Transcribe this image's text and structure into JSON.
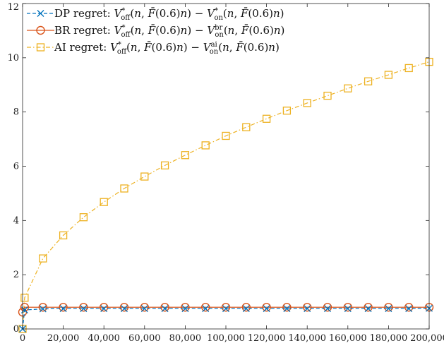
{
  "chart_data": {
    "type": "line",
    "title": "",
    "xlabel": "",
    "ylabel": "",
    "xlim": [
      0,
      200000
    ],
    "ylim": [
      0,
      12
    ],
    "x_ticks": [
      0,
      20000,
      40000,
      60000,
      80000,
      100000,
      120000,
      140000,
      160000,
      180000,
      200000
    ],
    "x_tick_labels": [
      "0",
      "20,000",
      "40,000",
      "60,000",
      "80,000",
      "100,000",
      "120,000",
      "140,000",
      "160,000",
      "180,000",
      "200,000"
    ],
    "y_ticks": [
      0,
      2,
      4,
      6,
      8,
      10,
      12
    ],
    "y_tick_labels": [
      "0",
      "2",
      "4",
      "6",
      "8",
      "10",
      "12"
    ],
    "grid": false,
    "legend_position": "top-left",
    "x": [
      0,
      1000,
      10000,
      20000,
      30000,
      40000,
      50000,
      60000,
      70000,
      80000,
      90000,
      100000,
      110000,
      120000,
      130000,
      140000,
      150000,
      160000,
      170000,
      180000,
      190000,
      200000
    ],
    "series": [
      {
        "name": "DP regret: V*off(n, F̄(0.6)n) − V*on(n, F̄(0.6)n)",
        "legend_label": "DP regret:",
        "color": "#0072BD",
        "line_style": "dashed",
        "marker": "x",
        "values": [
          0.0,
          0.7,
          0.74,
          0.75,
          0.75,
          0.75,
          0.75,
          0.75,
          0.75,
          0.75,
          0.75,
          0.75,
          0.75,
          0.75,
          0.75,
          0.75,
          0.75,
          0.75,
          0.75,
          0.75,
          0.75,
          0.76
        ]
      },
      {
        "name": "BR regret: V*off(n, F̄(0.6)n) − V^br_on(n, F̄(0.6)n)",
        "legend_label": "BR regret:",
        "color": "#D95319",
        "line_style": "solid",
        "marker": "circle",
        "values": [
          0.62,
          0.8,
          0.8,
          0.8,
          0.8,
          0.8,
          0.8,
          0.8,
          0.8,
          0.8,
          0.8,
          0.8,
          0.8,
          0.8,
          0.8,
          0.8,
          0.8,
          0.8,
          0.8,
          0.8,
          0.8,
          0.8
        ]
      },
      {
        "name": "AI regret: V*off(n, F̄(0.6)n) − V^ai_on(n, F̄(0.6)n)",
        "legend_label": "AI  regret:",
        "color": "#EDB120",
        "line_style": "dashdot",
        "marker": "square",
        "values": [
          0.0,
          1.15,
          2.6,
          3.45,
          4.12,
          4.68,
          5.18,
          5.62,
          6.03,
          6.41,
          6.77,
          7.12,
          7.44,
          7.75,
          8.05,
          8.33,
          8.6,
          8.87,
          9.13,
          9.37,
          9.62,
          9.85
        ]
      }
    ]
  }
}
